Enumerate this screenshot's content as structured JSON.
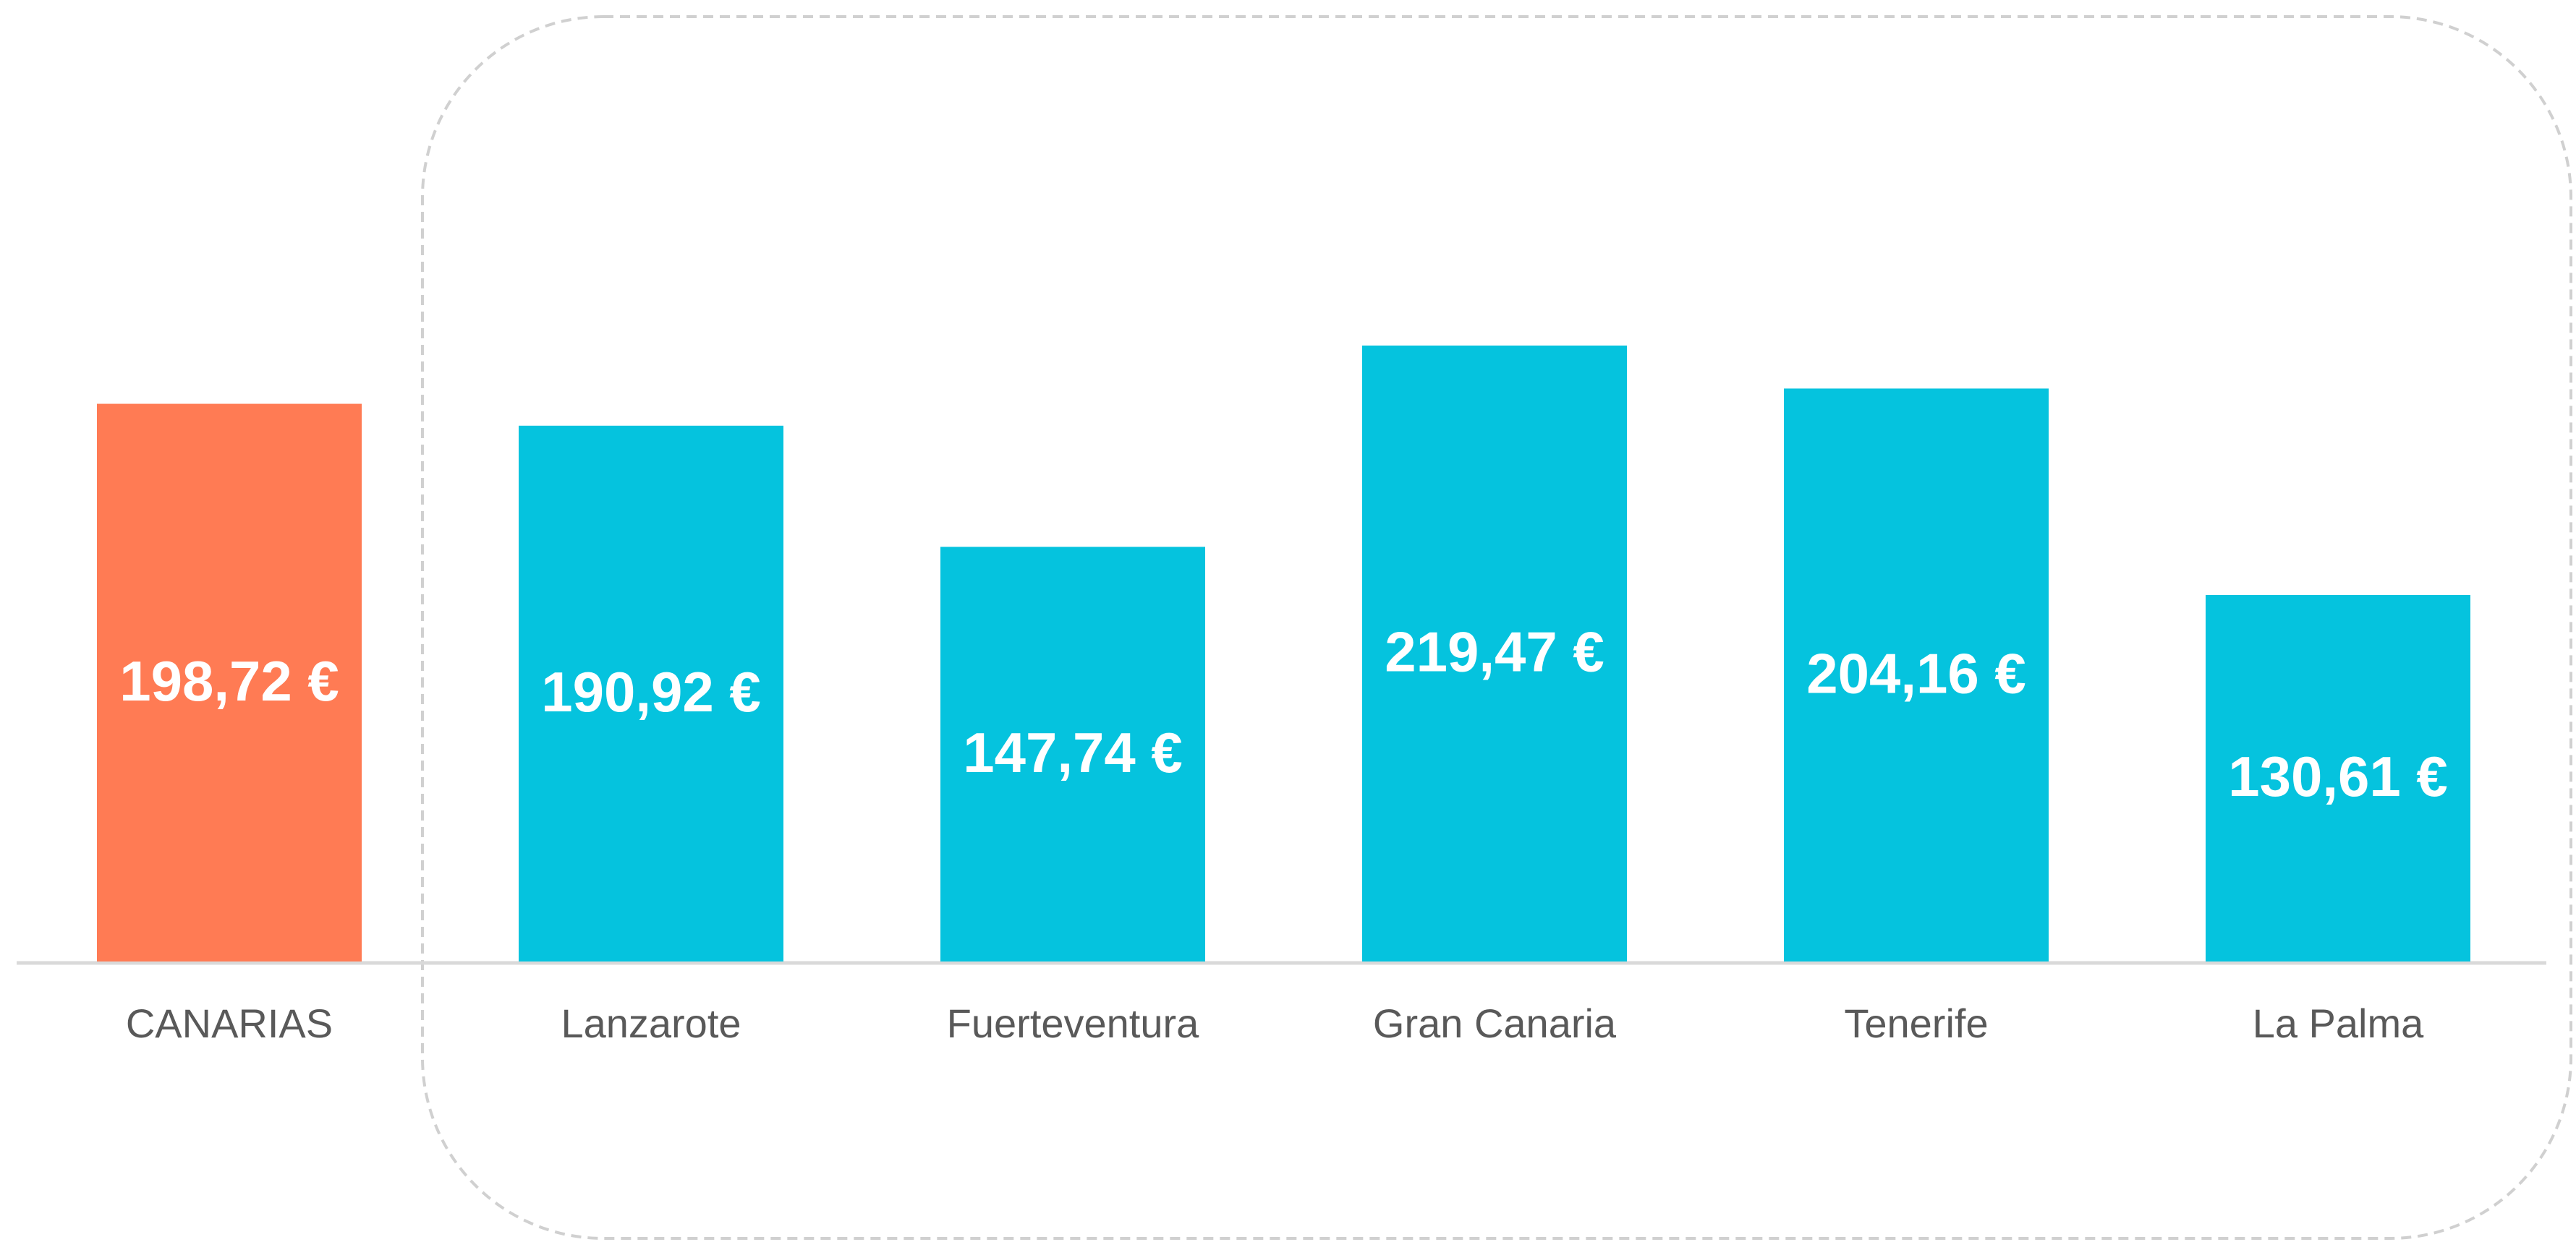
{
  "chart_data": {
    "type": "bar",
    "categories": [
      "CANARIAS",
      "Lanzarote",
      "Fuerteventura",
      "Gran Canaria",
      "Tenerife",
      "La Palma"
    ],
    "values": [
      198.72,
      190.92,
      147.74,
      219.47,
      204.16,
      130.61
    ],
    "value_labels": [
      "198,72 €",
      "190,92 €",
      "147,74 €",
      "219,47 €",
      "204,16 €",
      "130,61 €"
    ],
    "colors": [
      "#ff7b54",
      "#05c3de",
      "#05c3de",
      "#05c3de",
      "#05c3de",
      "#05c3de"
    ]
  }
}
